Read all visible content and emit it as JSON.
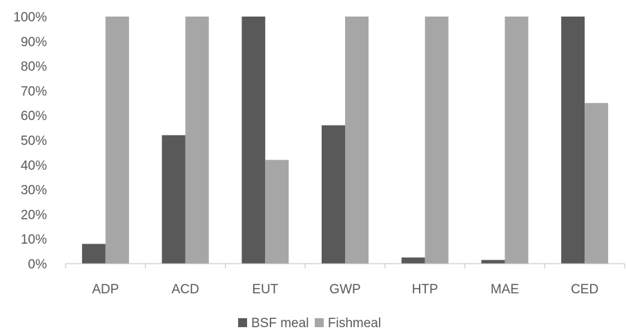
{
  "chart_data": {
    "type": "bar",
    "categories": [
      "ADP",
      "ACD",
      "EUT",
      "GWP",
      "HTP",
      "MAE",
      "CED"
    ],
    "series": [
      {
        "name": "BSF meal",
        "values": [
          8,
          52,
          100,
          56,
          2.5,
          1.5,
          100
        ],
        "color": "#595959"
      },
      {
        "name": "Fishmeal",
        "values": [
          100,
          100,
          42,
          100,
          100,
          100,
          65
        ],
        "color": "#a6a6a6"
      }
    ],
    "ylim": [
      0,
      100
    ],
    "yticks": [
      "0%",
      "10%",
      "20%",
      "30%",
      "40%",
      "50%",
      "60%",
      "70%",
      "80%",
      "90%",
      "100%"
    ],
    "grid": false,
    "legend": "bottom"
  }
}
